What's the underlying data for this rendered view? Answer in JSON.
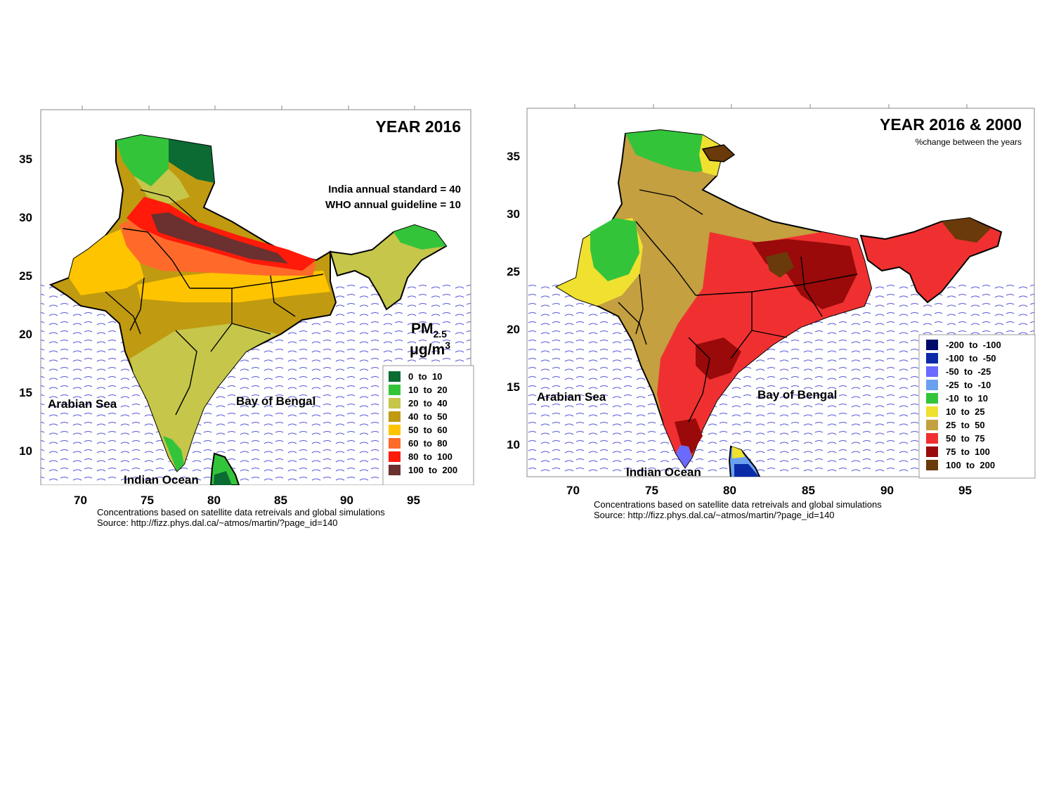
{
  "left_map": {
    "title": "YEAR 2016",
    "standard_line1": "India annual standard = 40",
    "standard_line2": "WHO annual guideline = 10",
    "pm_label": "PM",
    "pm_sub": "2.5",
    "unit_mu": "μ",
    "unit_rest": "g/m",
    "unit_sup": "3",
    "y_ticks": [
      "35",
      "30",
      "25",
      "20",
      "15",
      "10"
    ],
    "x_ticks": [
      "70",
      "75",
      "80",
      "85",
      "90",
      "95"
    ],
    "places": {
      "arabian_sea": "Arabian Sea",
      "bay_of_bengal": "Bay of Bengal",
      "indian_ocean": "Indian Ocean"
    },
    "legend": [
      {
        "label": "0  to  10",
        "color": "#0b6b33"
      },
      {
        "label": "10  to  20",
        "color": "#33c43a"
      },
      {
        "label": "20  to  40",
        "color": "#c6c64a"
      },
      {
        "label": "40  to  50",
        "color": "#c09a10"
      },
      {
        "label": "50  to  60",
        "color": "#ffc400"
      },
      {
        "label": "60  to  80",
        "color": "#ff6a2a"
      },
      {
        "label": "80  to  100",
        "color": "#ff1a0a"
      },
      {
        "label": "100  to  200",
        "color": "#6b3030"
      }
    ],
    "caption_line1": "Concentrations based on satellite data retreivals and global simulations",
    "caption_line2": "Source: http://fizz.phys.dal.ca/~atmos/martin/?page_id=140"
  },
  "right_map": {
    "title": "YEAR 2016 & 2000",
    "subtitle": "%change between the years",
    "y_ticks": [
      "35",
      "30",
      "25",
      "20",
      "15",
      "10"
    ],
    "x_ticks": [
      "70",
      "75",
      "80",
      "85",
      "90",
      "95"
    ],
    "places": {
      "arabian_sea": "Arabian Sea",
      "bay_of_bengal": "Bay of Bengal",
      "indian_ocean": "Indian Ocean"
    },
    "legend": [
      {
        "label": "-200  to  -100",
        "color": "#000a6b"
      },
      {
        "label": "-100  to  -50",
        "color": "#0a2aa8"
      },
      {
        "label": "-50  to  -25",
        "color": "#6a6aff"
      },
      {
        "label": "-25  to  -10",
        "color": "#6aa0f0"
      },
      {
        "label": "-10  to  10",
        "color": "#33c43a"
      },
      {
        "label": "10  to  25",
        "color": "#f0e030"
      },
      {
        "label": "25  to  50",
        "color": "#c4a040"
      },
      {
        "label": "50  to  75",
        "color": "#f03030"
      },
      {
        "label": "75  to  100",
        "color": "#9a0a0a"
      },
      {
        "label": "100  to  200",
        "color": "#6a3a0a"
      }
    ],
    "caption_line1": "Concentrations based on satellite data retreivals and global simulations",
    "caption_line2": "Source: http://fizz.phys.dal.ca/~atmos/martin/?page_id=140"
  }
}
